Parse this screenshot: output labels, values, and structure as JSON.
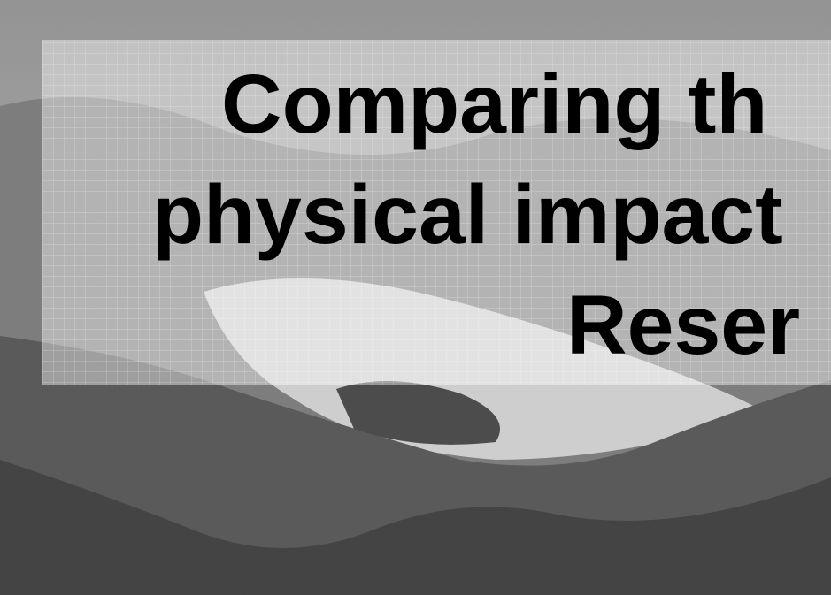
{
  "slide": {
    "title_lines": [
      "Comparing th",
      "physical impact",
      "Reser"
    ]
  }
}
